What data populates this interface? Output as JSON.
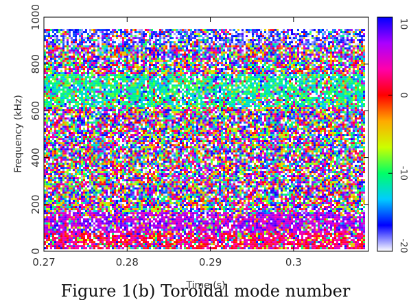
{
  "chart_data": {
    "type": "heatmap",
    "title": "",
    "xlabel": "Time (s)",
    "ylabel": "Frequency (kHz)",
    "xlim": [
      0.27,
      0.309
    ],
    "ylim": [
      0,
      1000
    ],
    "data_x_range": [
      0.27,
      0.3085
    ],
    "data_y_range": [
      10,
      950
    ],
    "x_ticks": [
      0.27,
      0.28,
      0.29,
      0.3
    ],
    "x_tick_labels": [
      "0.27",
      "0.28",
      "0.29",
      "0.3"
    ],
    "y_ticks": [
      0,
      200,
      400,
      600,
      800,
      1000
    ],
    "y_tick_labels": [
      "0",
      "200",
      "400",
      "600",
      "800",
      "1000"
    ],
    "colorbar": {
      "range": [
        -20,
        10
      ],
      "ticks": [
        -20,
        -10,
        0,
        10
      ],
      "tick_labels": [
        "-20",
        "-10",
        "0",
        "10"
      ],
      "colormap": [
        "#ffffff",
        "#0000ff",
        "#00ccff",
        "#00ff66",
        "#ccff00",
        "#ffaa00",
        "#ff0000",
        "#ff00aa",
        "#aa00ff",
        "#0000ff"
      ]
    },
    "bands": [
      {
        "y_range": [
          0,
          80
        ],
        "dominant_value": 2,
        "description": "red/orange"
      },
      {
        "y_range": [
          80,
          170
        ],
        "dominant_value": 6,
        "description": "magenta"
      },
      {
        "y_range": [
          620,
          760
        ],
        "dominant_value": -11,
        "description": "green"
      },
      {
        "y_range": [
          880,
          950
        ],
        "dominant_value": -18,
        "description": "blue/cyan"
      }
    ]
  },
  "caption": "Figure 1(b) Toroidal mode number",
  "colors": {
    "axis": "#000000",
    "text": "#333333"
  }
}
